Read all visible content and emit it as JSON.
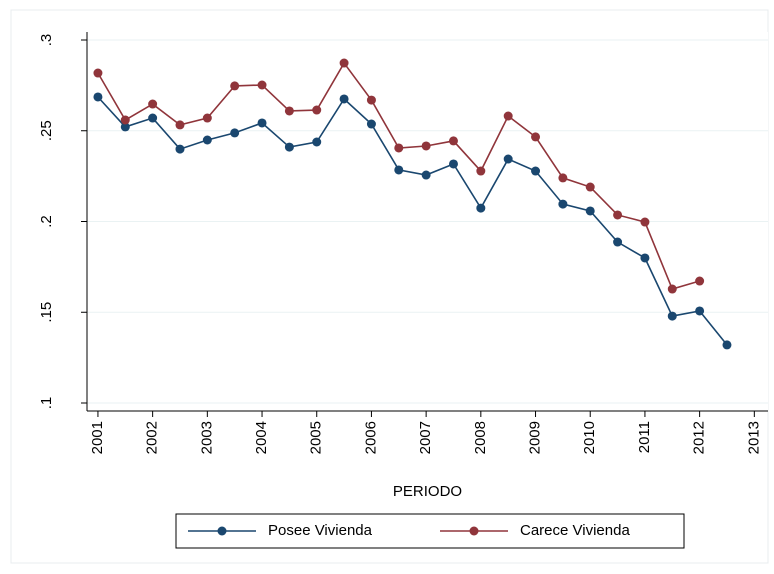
{
  "chart_data": {
    "type": "line",
    "x_label": "PERIODO",
    "x": [
      2001,
      2001.5,
      2002,
      2002.5,
      2003,
      2003.5,
      2004,
      2004.5,
      2005,
      2005.5,
      2006,
      2006.5,
      2007,
      2007.5,
      2008,
      2008.5,
      2009,
      2009.5,
      2010,
      2010.5,
      2011,
      2011.5,
      2012,
      2012.5
    ],
    "series": [
      {
        "name": "Posee Vivienda",
        "color": "#1a476f",
        "values": [
          0.2686,
          0.2521,
          0.257,
          0.2399,
          0.2449,
          0.2488,
          0.2543,
          0.241,
          0.2438,
          0.2675,
          0.2537,
          0.2284,
          0.2256,
          0.2317,
          0.2074,
          0.2344,
          0.2278,
          0.2096,
          0.2058,
          0.1887,
          0.1799,
          0.1479,
          0.1507,
          0.132
        ]
      },
      {
        "name": "Carece Vivienda",
        "color": "#90353b",
        "values": [
          0.2818,
          0.2559,
          0.2647,
          0.2532,
          0.257,
          0.2747,
          0.2752,
          0.2609,
          0.2614,
          0.2873,
          0.2669,
          0.2405,
          0.2416,
          0.2444,
          0.2278,
          0.2581,
          0.2466,
          0.224,
          0.219,
          0.2036,
          0.1997,
          0.1628,
          0.1672,
          null
        ]
      }
    ],
    "xlim": [
      2000.8,
      2013.25
    ],
    "xticks": [
      2001,
      2002,
      2003,
      2004,
      2005,
      2006,
      2007,
      2008,
      2009,
      2010,
      2011,
      2012,
      2013
    ],
    "ylim": [
      0.0956,
      0.3044
    ],
    "yticks": [
      {
        "value": 0.1,
        "label": ".1"
      },
      {
        "value": 0.15,
        "label": ".15"
      },
      {
        "value": 0.2,
        "label": ".2"
      },
      {
        "value": 0.25,
        "label": ".25"
      },
      {
        "value": 0.3,
        "label": ".3"
      }
    ],
    "grid": true,
    "legend": "bottom"
  }
}
